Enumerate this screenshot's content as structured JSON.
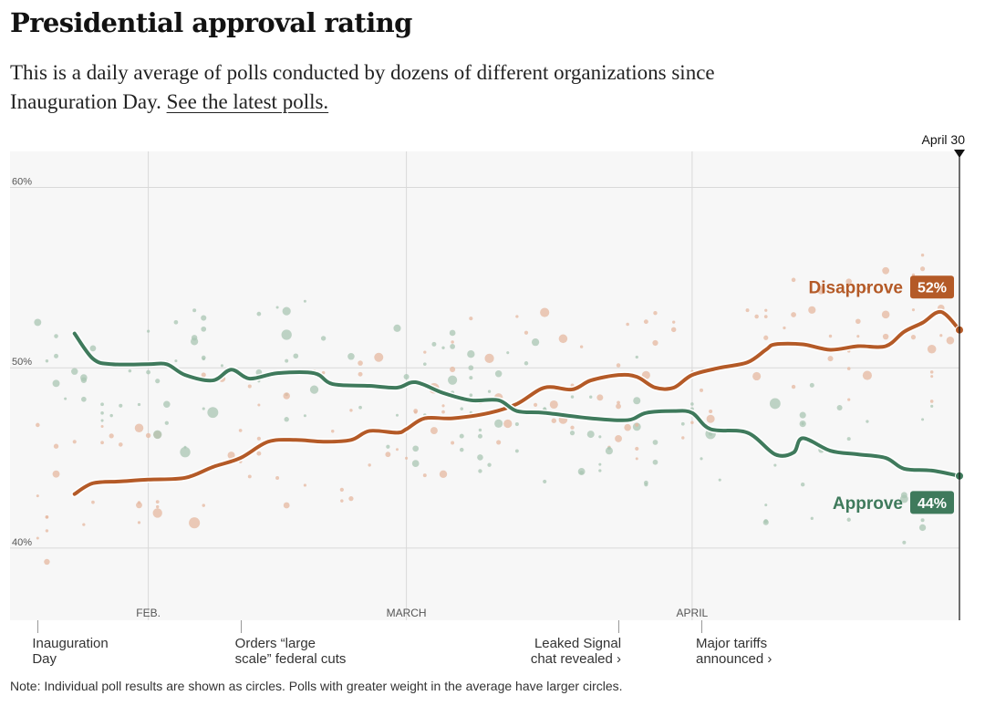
{
  "title": "Presidential approval rating",
  "subtitle": {
    "text": "This is a daily average of polls conducted by dozens of different organizations since Inauguration Day.",
    "link": "See the latest polls."
  },
  "colors": {
    "approve": "#3f7a5c",
    "disapprove": "#b45a27",
    "approve_dot": "#a9c6b3",
    "disapprove_dot": "#e5b8a0",
    "background": "#f7f7f7"
  },
  "chart_data": {
    "type": "line",
    "x_type": "date",
    "xlim": [
      "2025-01-17",
      "2025-04-30"
    ],
    "ylim": [
      36,
      62
    ],
    "yticks": [
      {
        "value": 60,
        "label": "60%"
      },
      {
        "value": 50,
        "label": "50%"
      },
      {
        "value": 40,
        "label": "40%"
      }
    ],
    "month_ticks": [
      {
        "date": "2025-02-01",
        "label": "FEB."
      },
      {
        "date": "2025-03-01",
        "label": "MARCH"
      },
      {
        "date": "2025-04-01",
        "label": "APRIL"
      }
    ],
    "current_date": {
      "date": "2025-04-30",
      "label": "April 30"
    },
    "grid": true,
    "series": [
      {
        "name": "Disapprove",
        "final_label": "52%",
        "points": [
          [
            "2025-01-24",
            43.0
          ],
          [
            "2025-01-26",
            43.6
          ],
          [
            "2025-01-29",
            43.7
          ],
          [
            "2025-02-01",
            43.8
          ],
          [
            "2025-02-05",
            43.9
          ],
          [
            "2025-02-08",
            44.5
          ],
          [
            "2025-02-11",
            45.0
          ],
          [
            "2025-02-14",
            45.9
          ],
          [
            "2025-02-17",
            46.0
          ],
          [
            "2025-02-20",
            45.9
          ],
          [
            "2025-02-23",
            46.0
          ],
          [
            "2025-02-25",
            46.5
          ],
          [
            "2025-02-28",
            46.4
          ],
          [
            "2025-03-01",
            46.6
          ],
          [
            "2025-03-03",
            47.2
          ],
          [
            "2025-03-06",
            47.2
          ],
          [
            "2025-03-10",
            47.5
          ],
          [
            "2025-03-13",
            48.0
          ],
          [
            "2025-03-16",
            48.9
          ],
          [
            "2025-03-19",
            48.8
          ],
          [
            "2025-03-21",
            49.3
          ],
          [
            "2025-03-24",
            49.6
          ],
          [
            "2025-03-26",
            49.5
          ],
          [
            "2025-03-28",
            48.9
          ],
          [
            "2025-03-30",
            48.9
          ],
          [
            "2025-04-01",
            49.6
          ],
          [
            "2025-04-04",
            50.0
          ],
          [
            "2025-04-07",
            50.3
          ],
          [
            "2025-04-09",
            51.0
          ],
          [
            "2025-04-10",
            51.3
          ],
          [
            "2025-04-13",
            51.3
          ],
          [
            "2025-04-16",
            51.0
          ],
          [
            "2025-04-19",
            51.2
          ],
          [
            "2025-04-22",
            51.2
          ],
          [
            "2025-04-24",
            52.0
          ],
          [
            "2025-04-26",
            52.5
          ],
          [
            "2025-04-28",
            53.1
          ],
          [
            "2025-04-30",
            52.1
          ]
        ]
      },
      {
        "name": "Approve",
        "final_label": "44%",
        "points": [
          [
            "2025-01-24",
            51.9
          ],
          [
            "2025-01-26",
            50.5
          ],
          [
            "2025-01-28",
            50.2
          ],
          [
            "2025-02-01",
            50.2
          ],
          [
            "2025-02-03",
            50.2
          ],
          [
            "2025-02-05",
            49.6
          ],
          [
            "2025-02-08",
            49.3
          ],
          [
            "2025-02-10",
            49.9
          ],
          [
            "2025-02-12",
            49.4
          ],
          [
            "2025-02-15",
            49.7
          ],
          [
            "2025-02-19",
            49.7
          ],
          [
            "2025-02-21",
            49.1
          ],
          [
            "2025-02-25",
            49.0
          ],
          [
            "2025-02-28",
            48.9
          ],
          [
            "2025-03-02",
            49.2
          ],
          [
            "2025-03-05",
            48.6
          ],
          [
            "2025-03-08",
            48.2
          ],
          [
            "2025-03-11",
            48.2
          ],
          [
            "2025-03-13",
            47.6
          ],
          [
            "2025-03-16",
            47.5
          ],
          [
            "2025-03-21",
            47.2
          ],
          [
            "2025-03-25",
            47.1
          ],
          [
            "2025-03-27",
            47.5
          ],
          [
            "2025-03-30",
            47.6
          ],
          [
            "2025-04-01",
            47.5
          ],
          [
            "2025-04-03",
            46.6
          ],
          [
            "2025-04-07",
            46.4
          ],
          [
            "2025-04-10",
            45.2
          ],
          [
            "2025-04-12",
            45.3
          ],
          [
            "2025-04-13",
            46.1
          ],
          [
            "2025-04-16",
            45.4
          ],
          [
            "2025-04-19",
            45.2
          ],
          [
            "2025-04-22",
            45.0
          ],
          [
            "2025-04-24",
            44.4
          ],
          [
            "2025-04-27",
            44.3
          ],
          [
            "2025-04-30",
            44.0
          ]
        ]
      }
    ]
  },
  "events": [
    {
      "text": "Inauguration\nDay",
      "date": "2025-01-20",
      "align": "left"
    },
    {
      "text": "Orders “large\nscale” federal cuts",
      "date": "2025-02-11",
      "align": "left"
    },
    {
      "text": "Leaked Signal\nchat revealed ›",
      "date": "2025-03-24",
      "align": "right"
    },
    {
      "text": "Major tariffs\nannounced ›",
      "date": "2025-04-02",
      "align": "left"
    }
  ],
  "note": "Note: Individual poll results are shown as circles. Polls with greater weight in the average have larger circles."
}
